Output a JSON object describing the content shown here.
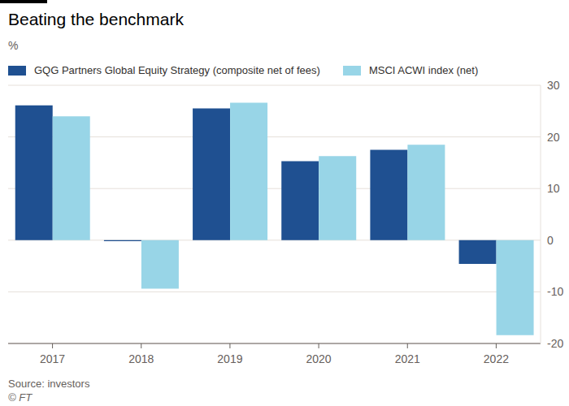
{
  "chart_data": {
    "type": "bar",
    "title": "Beating the benchmark",
    "subtitle": "%",
    "categories": [
      "2017",
      "2018",
      "2019",
      "2020",
      "2021",
      "2022"
    ],
    "series": [
      {
        "name": "GQG Partners Global Equity Strategy (composite net of fees)",
        "color": "#1f5091",
        "values": [
          26.1,
          -0.2,
          25.5,
          15.3,
          17.5,
          -4.6
        ]
      },
      {
        "name": "MSCI ACWI index (net)",
        "color": "#98d5e7",
        "values": [
          24.0,
          -9.4,
          26.6,
          16.3,
          18.5,
          -18.4
        ]
      }
    ],
    "ylim": [
      -20,
      30
    ],
    "yticks": [
      -20,
      -10,
      0,
      10,
      20,
      30
    ],
    "grid": true,
    "source": "Source: investors",
    "credit": "© FT"
  }
}
